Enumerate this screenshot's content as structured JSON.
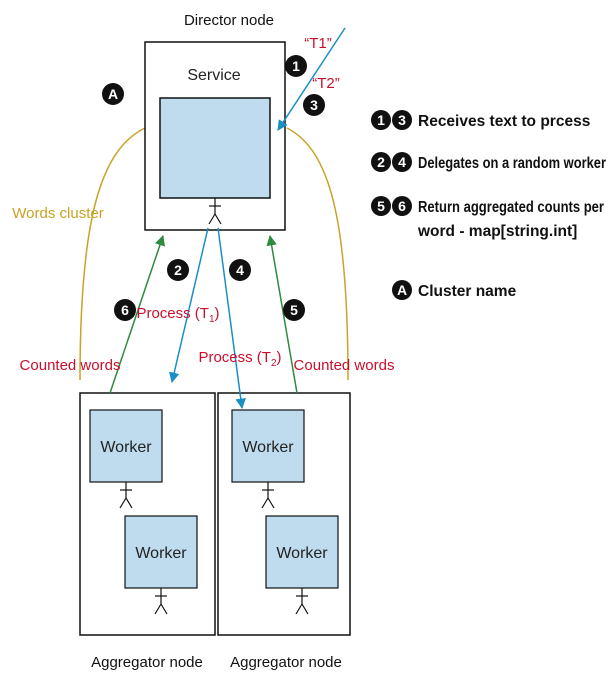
{
  "director": {
    "label": "Director node",
    "service_label": "Service"
  },
  "aggregators": [
    {
      "label": "Aggregator node",
      "workers": [
        "Worker",
        "Worker"
      ]
    },
    {
      "label": "Aggregator node",
      "workers": [
        "Worker",
        "Worker"
      ]
    }
  ],
  "cluster_label": "Words cluster",
  "inputs": {
    "t1": "“T1”",
    "t2": "“T2”"
  },
  "process_1": {
    "text": "Process (T",
    "sub": "1",
    "close": ")"
  },
  "process_2": {
    "text": "Process (T",
    "sub": "2",
    "close": ")"
  },
  "counted_words": "Counted words",
  "badges": {
    "b1": "1",
    "b2": "2",
    "b3": "3",
    "b4": "4",
    "b5": "5",
    "b6": "6",
    "bA": "A"
  },
  "legend": [
    {
      "badges": [
        "1",
        "3"
      ],
      "lines": [
        "Receives text to prcess"
      ]
    },
    {
      "badges": [
        "2",
        "4"
      ],
      "lines": [
        "Delegates on a random worker"
      ]
    },
    {
      "badges": [
        "5",
        "6"
      ],
      "lines": [
        "Return aggregated counts per",
        "word - map[string.int]"
      ]
    },
    {
      "badges": [
        "A"
      ],
      "lines": [
        "Cluster name"
      ]
    }
  ],
  "colors": {
    "box_fill": "#bfdcef",
    "blue_arrow": "#1a8fc4",
    "green_arrow": "#2e8b3e",
    "red_text": "#c8102e",
    "gold": "#c9a227",
    "badge": "#111111"
  }
}
